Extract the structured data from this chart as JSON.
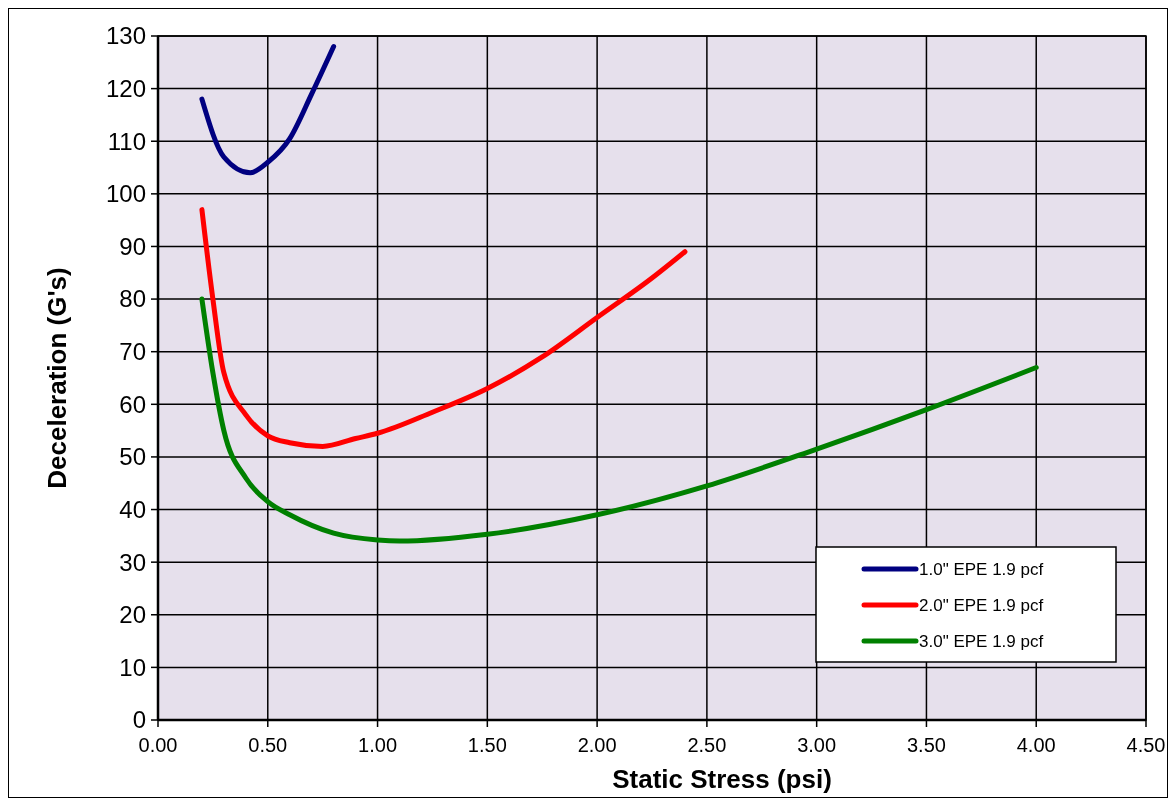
{
  "chart_data": {
    "type": "line",
    "xlabel": "Static Stress (psi)",
    "ylabel": "Deceleration (G's)",
    "xlim": [
      0,
      4.5
    ],
    "ylim": [
      0,
      130
    ],
    "xticks": [
      {
        "value": 0,
        "label": "0.00"
      },
      {
        "value": 0.5,
        "label": "0.50"
      },
      {
        "value": 1,
        "label": "1.00"
      },
      {
        "value": 1.5,
        "label": "1.50"
      },
      {
        "value": 2,
        "label": "2.00"
      },
      {
        "value": 2.5,
        "label": "2.50"
      },
      {
        "value": 3,
        "label": "3.00"
      },
      {
        "value": 3.5,
        "label": "3.50"
      },
      {
        "value": 4,
        "label": "4.00"
      },
      {
        "value": 4.5,
        "label": "4.50"
      }
    ],
    "yticks": [
      0,
      10,
      20,
      30,
      40,
      50,
      60,
      70,
      80,
      90,
      100,
      110,
      120,
      130
    ],
    "grid": true,
    "legend": "bottom right",
    "marker": "none",
    "line_style": "solid",
    "series": [
      {
        "name": "1.0\" EPE 1.9 pcf",
        "color": "#000080",
        "x": [
          0.2,
          0.3,
          0.42,
          0.5,
          0.6,
          0.7,
          0.8
        ],
        "values": [
          118,
          107,
          104,
          106,
          110.5,
          119,
          128
        ]
      },
      {
        "name": "2.0\" EPE 1.9 pcf",
        "color": "#ff0000",
        "x": [
          0.2,
          0.25,
          0.3,
          0.4,
          0.5,
          0.6,
          0.75,
          0.9,
          1.0,
          1.25,
          1.5,
          1.75,
          2.0,
          2.25,
          2.4
        ],
        "values": [
          97,
          80,
          66,
          58,
          54,
          52.7,
          52,
          53.5,
          54.5,
          58.5,
          63,
          69,
          76.5,
          84,
          89
        ]
      },
      {
        "name": "3.0\" EPE 1.9 pcf",
        "color": "#008000",
        "x": [
          0.2,
          0.25,
          0.3,
          0.4,
          0.5,
          0.6,
          0.8,
          1.0,
          1.1,
          1.5,
          2.0,
          2.5,
          3.0,
          3.5,
          4.0
        ],
        "values": [
          80,
          66,
          55,
          46,
          41.5,
          39,
          35.5,
          34.2,
          34,
          35.3,
          39,
          44.5,
          51.5,
          59,
          67
        ]
      }
    ]
  }
}
